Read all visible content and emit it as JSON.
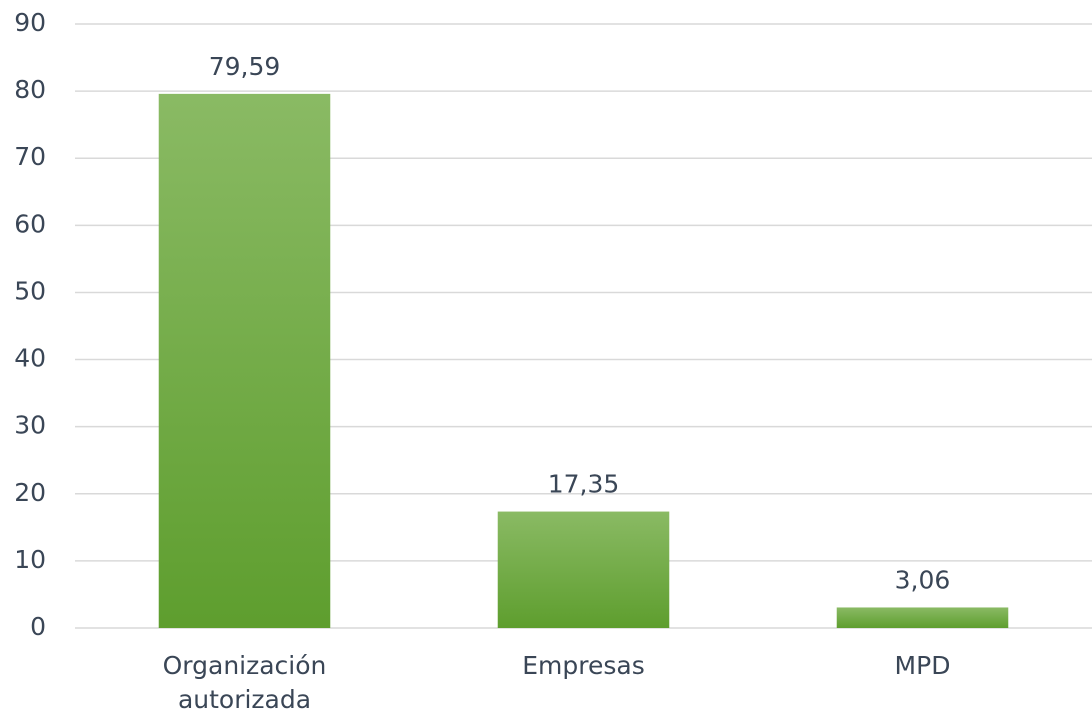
{
  "chart_data": {
    "type": "bar",
    "categories": [
      "Organización autorizada",
      "Empresas",
      "MPD"
    ],
    "values": [
      79.59,
      17.35,
      3.06
    ],
    "value_labels": [
      "79,59",
      "17,35",
      "3,06"
    ],
    "color": "#6aa83b",
    "ylim": [
      0,
      90
    ],
    "yticks": [
      0,
      10,
      20,
      30,
      40,
      50,
      60,
      70,
      80,
      90
    ],
    "grid": true
  }
}
